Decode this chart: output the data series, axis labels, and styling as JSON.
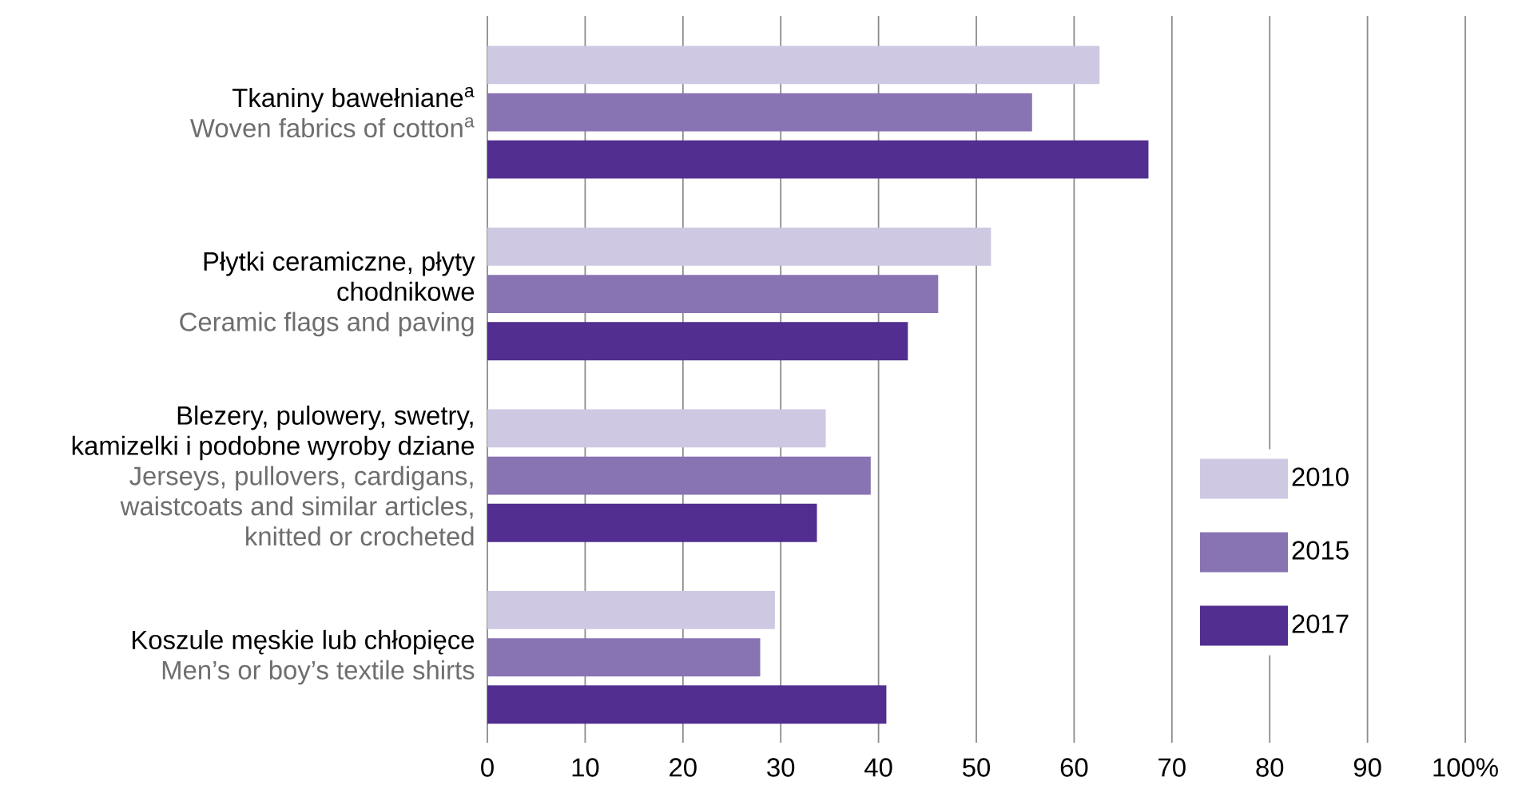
{
  "chart_data": {
    "type": "bar",
    "orientation": "horizontal",
    "categories": [
      "Tkaniny bawełniane$^{a}$",
      "Płytki ceramiczne, płyty chodnikowe",
      "Blezery, pulowery, swetry, kamizelki i podobne wyroby dziane",
      "Koszule męskie lub chłopięce"
    ],
    "annotations": [
      "Woven fabrics of cotton$^{a}$",
      "Ceramic flags and paving",
      "Jerseys, pullovers, cardigans, waistcoats and similar articles, knitted or crocheted",
      "Men’s or boy’s textile shirts"
    ],
    "series": [
      {
        "name": "2010",
        "color": "#cfc8e2",
        "values": [
          62.6,
          51.5,
          34.6,
          29.4
        ]
      },
      {
        "name": "2015",
        "color": "#8873b3",
        "values": [
          55.7,
          46.1,
          39.2,
          27.9
        ]
      },
      {
        "name": "2017",
        "color": "#512e8f",
        "values": [
          67.6,
          43.0,
          33.7,
          40.8
        ]
      }
    ],
    "xlim": [
      0,
      100
    ],
    "xticks": [
      0,
      10,
      20,
      30,
      40,
      50,
      60,
      70,
      80,
      90,
      {
        "value": 100,
        "label": "100%"
      }
    ],
    "grid": "x",
    "legend": "bottom right"
  }
}
